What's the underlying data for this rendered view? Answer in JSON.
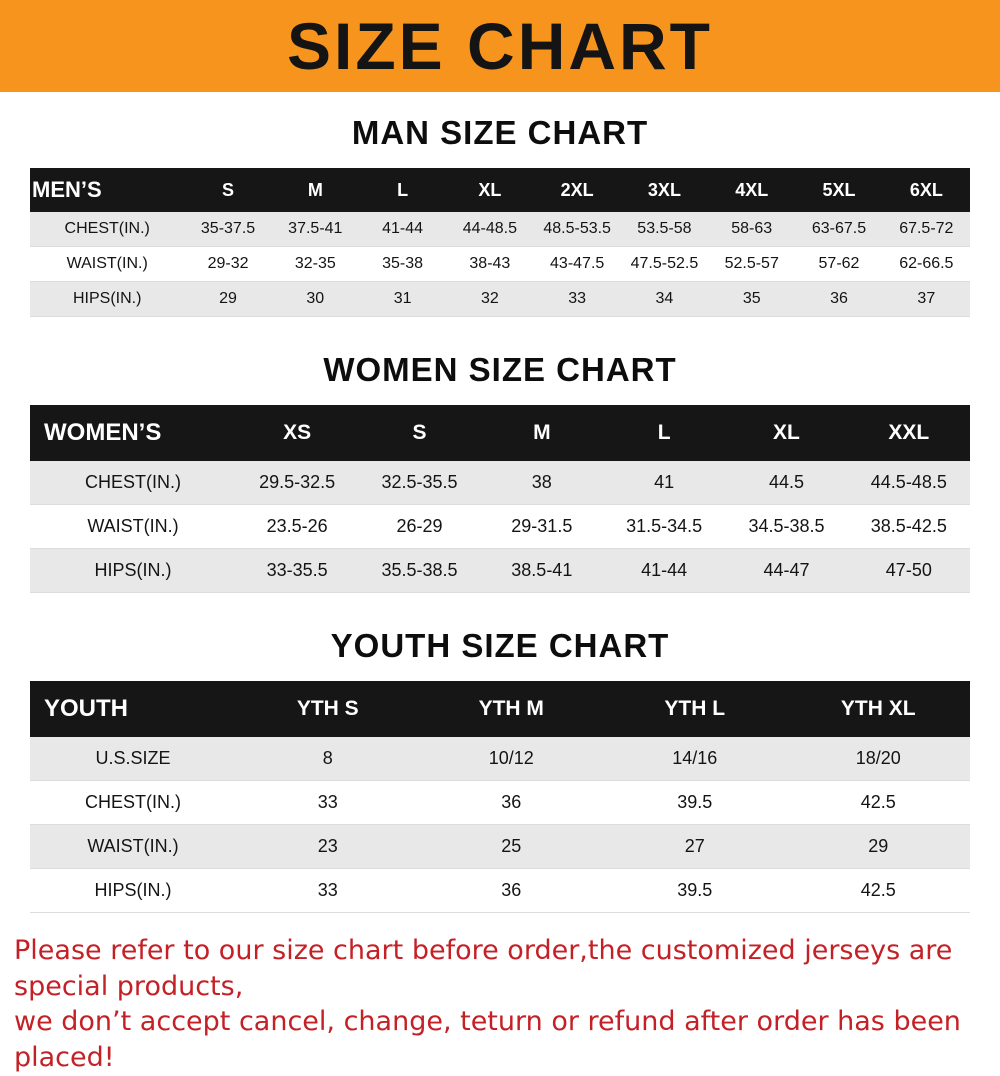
{
  "banner": {
    "title": "SIZE CHART"
  },
  "colors": {
    "banner_bg": "#f7941e",
    "table_header_bg": "#161616",
    "row_alt_bg": "#e8e8e8",
    "footer_red": "#c42127"
  },
  "chart_data": [
    {
      "type": "table",
      "title": "MAN SIZE CHART",
      "header": [
        "MEN’S",
        "S",
        "M",
        "L",
        "XL",
        "2XL",
        "3XL",
        "4XL",
        "5XL",
        "6XL"
      ],
      "rows": [
        [
          "CHEST(IN.)",
          "35-37.5",
          "37.5-41",
          "41-44",
          "44-48.5",
          "48.5-53.5",
          "53.5-58",
          "58-63",
          "63-67.5",
          "67.5-72"
        ],
        [
          "WAIST(IN.)",
          "29-32",
          "32-35",
          "35-38",
          "38-43",
          "43-47.5",
          "47.5-52.5",
          "52.5-57",
          "57-62",
          "62-66.5"
        ],
        [
          "HIPS(IN.)",
          "29",
          "30",
          "31",
          "32",
          "33",
          "34",
          "35",
          "36",
          "37"
        ]
      ]
    },
    {
      "type": "table",
      "title": "WOMEN SIZE CHART",
      "header": [
        "WOMEN’S",
        "XS",
        "S",
        "M",
        "L",
        "XL",
        "XXL"
      ],
      "rows": [
        [
          "CHEST(IN.)",
          "29.5-32.5",
          "32.5-35.5",
          "38",
          "41",
          "44.5",
          "44.5-48.5"
        ],
        [
          "WAIST(IN.)",
          "23.5-26",
          "26-29",
          "29-31.5",
          "31.5-34.5",
          "34.5-38.5",
          "38.5-42.5"
        ],
        [
          "HIPS(IN.)",
          "33-35.5",
          "35.5-38.5",
          "38.5-41",
          "41-44",
          "44-47",
          "47-50"
        ]
      ]
    },
    {
      "type": "table",
      "title": "YOUTH SIZE CHART",
      "header": [
        "YOUTH",
        "YTH S",
        "YTH M",
        "YTH L",
        "YTH XL"
      ],
      "rows": [
        [
          "U.S.SIZE",
          "8",
          "10/12",
          "14/16",
          "18/20"
        ],
        [
          "CHEST(IN.)",
          "33",
          "36",
          "39.5",
          "42.5"
        ],
        [
          "WAIST(IN.)",
          "23",
          "25",
          "27",
          "29"
        ],
        [
          "HIPS(IN.)",
          "33",
          "36",
          "39.5",
          "42.5"
        ]
      ]
    }
  ],
  "footer": {
    "line1": "Please refer to our size chart before order,the customized jerseys are special products,",
    "line2": "we don’t accept cancel, change, teturn or refund after order has been placed!"
  }
}
